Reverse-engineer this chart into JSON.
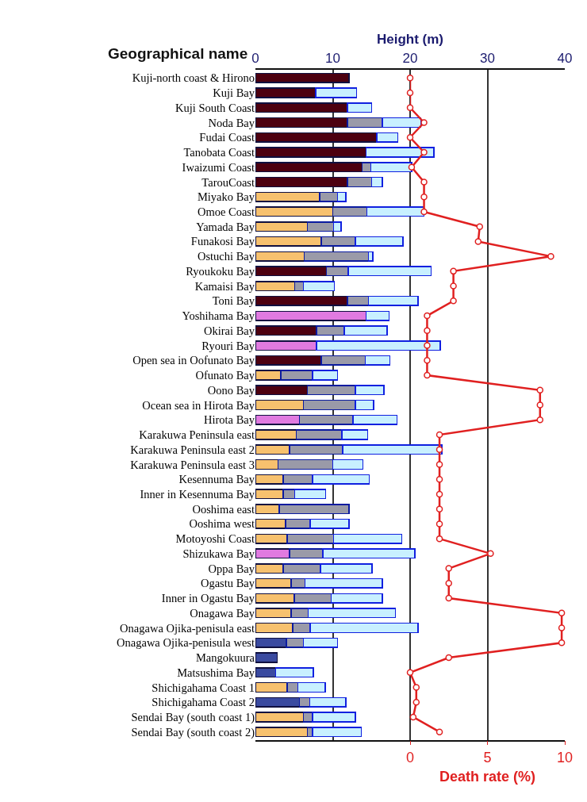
{
  "chart_data": {
    "type": "bar",
    "orientation": "horizontal",
    "stacked": true,
    "xlabel": "Height (m)",
    "ylabel": "Geographical name",
    "x2label": "Death rate (%)",
    "categories": [
      "Kuji-north coast & Hirono",
      "Kuji Bay",
      "Kuji South Coast",
      "Noda Bay",
      "Fudai Coast",
      "Tanobata Coast",
      "Iwaizumi Coast",
      "TarouCoast",
      "Miyako Bay",
      "Omoe Coast",
      "Yamada Bay",
      "Funakosi Bay",
      "Ostuchi Bay",
      "Ryoukoku Bay",
      "Kamaisi Bay",
      "Toni Bay",
      "Yoshihama Bay",
      "Okirai Bay",
      "Ryouri Bay",
      "Open sea in Oofunato Bay",
      "Ofunato Bay",
      "Oono Bay",
      "Ocean sea in Hirota Bay",
      "Hirota Bay",
      "Karakuwa Peninsula east",
      "Karakuwa Peninsula east 2",
      "Karakuwa Peninsula east 3",
      "Kesennuma Bay",
      "Inner in Kesennuma Bay",
      "Ooshima east",
      "Ooshima west",
      "Motoyoshi Coast",
      "Shizukawa Bay",
      "Oppa Bay",
      "Ogastu Bay",
      "Inner in Ogastu Bay",
      "Onagawa Bay",
      "Onagawa Ojika-penisula east",
      "Onagawa Ojika-penisula west",
      "Mangokuura",
      "Matsushima Bay",
      "Shichigahama Coast 1",
      "Shichigahama Coast 2",
      "Sendai Bay (south coast 1)",
      "Sendai Bay (south coast 2)"
    ],
    "series": [
      {
        "colors": [
          "#4d0010",
          "#4d0010",
          "#4d0010",
          "#4d0010",
          "#4d0010",
          "#4d0010",
          "#4d0010",
          "#4d0010",
          "#f7c16e",
          "#f7c16e",
          "#f7c16e",
          "#f7c16e",
          "#f7c16e",
          "#4d0010",
          "#f7c16e",
          "#4d0010",
          "#e07ae0",
          "#4d0010",
          "#e07ae0",
          "#4d0010",
          "#f7c16e",
          "#4d0010",
          "#f7c16e",
          "#e07ae0",
          "#f7c16e",
          "#f7c16e",
          "#f7c16e",
          "#f7c16e",
          "#f7c16e",
          "#f7c16e",
          "#f7c16e",
          "#f7c16e",
          "#e07ae0",
          "#f7c16e",
          "#f7c16e",
          "#f7c16e",
          "#f7c16e",
          "#f7c16e",
          "#3a4aa0",
          "#3a4aa0",
          "#3a4aa0",
          "#f7c16e",
          "#3a4aa0",
          "#f7c16e",
          "#f7c16e"
        ],
        "values": [
          12.1,
          7.8,
          11.9,
          11.9,
          15.7,
          14.3,
          13.8,
          11.9,
          8.3,
          10.0,
          6.7,
          8.5,
          6.3,
          9.2,
          5.1,
          11.9,
          14.3,
          7.9,
          7.9,
          8.5,
          3.3,
          6.7,
          6.2,
          5.7,
          5.3,
          4.4,
          2.9,
          3.6,
          3.6,
          3.1,
          3.9,
          4.1,
          4.4,
          3.6,
          4.6,
          5.0,
          4.6,
          4.8,
          4.0,
          2.8,
          2.6,
          4.1,
          5.7,
          6.2,
          6.7
        ]
      },
      {
        "color": "#9a9aa8",
        "values": [
          null,
          null,
          null,
          4.5,
          null,
          null,
          1.1,
          3.1,
          2.3,
          4.4,
          3.4,
          4.4,
          8.3,
          2.8,
          1.1,
          2.7,
          null,
          3.6,
          null,
          5.7,
          4.1,
          6.2,
          6.7,
          6.9,
          5.9,
          6.9,
          7.1,
          3.8,
          1.5,
          9.0,
          3.2,
          6.0,
          4.3,
          4.8,
          1.8,
          4.8,
          2.2,
          2.3,
          2.2,
          null,
          null,
          1.4,
          1.3,
          1.2,
          0.7
        ]
      },
      {
        "color": "#c8f0ff",
        "values": [
          null,
          5.3,
          3.1,
          5.0,
          2.7,
          8.8,
          5.3,
          1.4,
          1.1,
          7.4,
          1.0,
          6.2,
          0.6,
          10.7,
          4.0,
          6.4,
          3.0,
          5.5,
          16.0,
          3.2,
          3.2,
          3.7,
          2.4,
          5.7,
          3.3,
          12.8,
          3.9,
          7.3,
          4.0,
          null,
          5.0,
          8.8,
          11.9,
          6.7,
          10.0,
          6.6,
          11.3,
          13.9,
          4.4,
          null,
          4.9,
          3.5,
          4.7,
          5.5,
          6.3
        ]
      },
      {
        "type": "line",
        "axis": "x2",
        "color": "#e02020",
        "marker": "circle",
        "values": [
          0,
          0,
          0,
          0.9,
          0,
          0.9,
          0.1,
          0.9,
          0.9,
          0.9,
          4.5,
          4.4,
          9.1,
          2.8,
          2.8,
          2.8,
          1.1,
          1.1,
          1.1,
          1.1,
          1.1,
          8.4,
          8.4,
          8.4,
          1.9,
          1.9,
          1.9,
          1.9,
          1.9,
          1.9,
          1.9,
          1.9,
          5.2,
          2.5,
          2.5,
          2.5,
          9.8,
          9.8,
          9.8,
          2.5,
          0,
          0.4,
          0.4,
          0.2,
          1.9
        ]
      }
    ],
    "xlim": [
      0,
      40
    ],
    "xticks": [
      0,
      10,
      20,
      30,
      40
    ],
    "x2lim": [
      0,
      10
    ],
    "x2ticks": [
      0,
      5,
      10
    ],
    "grid": "x"
  }
}
